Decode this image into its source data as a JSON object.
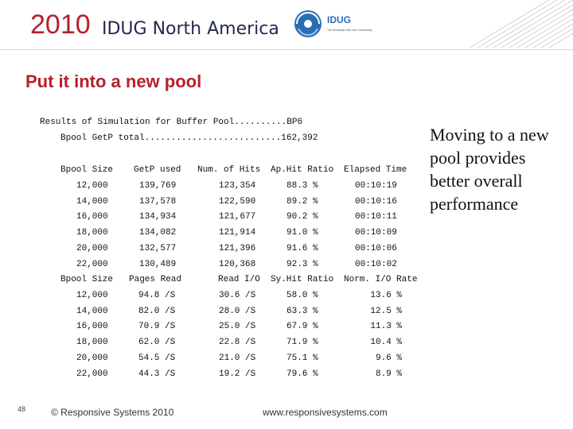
{
  "header": {
    "year": "2010",
    "conference": "IDUG North America",
    "badge_text": "IDUG",
    "badge_sub": "The Worldwide DB2 User Community"
  },
  "title": "Put it into a new pool",
  "results_line": "Results of Simulation for Buffer Pool..........BP6",
  "total_line": "Bpool GetP total..........................162,392",
  "table1": {
    "headers": [
      "Bpool Size",
      "GetP used",
      "Num. of Hits",
      "Ap.Hit Ratio",
      "Elapsed Time"
    ],
    "rows": [
      [
        "12,000",
        "139,769",
        "123,354",
        "88.3 %",
        "00:10:19"
      ],
      [
        "14,000",
        "137,578",
        "122,590",
        "89.2 %",
        "00:10:16"
      ],
      [
        "16,000",
        "134,934",
        "121,677",
        "90.2 %",
        "00:10:11"
      ],
      [
        "18,000",
        "134,082",
        "121,914",
        "91.0 %",
        "00:10:09"
      ],
      [
        "20,000",
        "132,577",
        "121,396",
        "91.6 %",
        "00:10:06"
      ],
      [
        "22,000",
        "130,489",
        "120,368",
        "92.3 %",
        "00:10:02"
      ]
    ]
  },
  "table2": {
    "headers": [
      "Bpool Size",
      "Pages Read",
      "Read I/O",
      "Sy.Hit Ratio",
      "Norm. I/O Rate"
    ],
    "rows": [
      [
        "12,000",
        "94.8 /S",
        "30.6 /S",
        "58.0 %",
        "13.6 %"
      ],
      [
        "14,000",
        "82.0 /S",
        "28.0 /S",
        "63.3 %",
        "12.5 %"
      ],
      [
        "16,000",
        "70.9 /S",
        "25.0 /S",
        "67.9 %",
        "11.3 %"
      ],
      [
        "18,000",
        "62.0 /S",
        "22.8 /S",
        "71.9 %",
        "10.4 %"
      ],
      [
        "20,000",
        "54.5 /S",
        "21.0 /S",
        "75.1 %",
        "9.6 %"
      ],
      [
        "22,000",
        "44.3 /S",
        "19.2 /S",
        "79.6 %",
        "8.9 %"
      ]
    ]
  },
  "side_note": "Moving to a new pool provides better overall performance",
  "footer": {
    "page_number": "48",
    "copyright": "© Responsive Systems 2010",
    "url": "www.responsivesystems.com"
  },
  "colors": {
    "accent": "#b5202c",
    "brand_navy": "#23284f",
    "badge_blue": "#2a6fb5"
  }
}
